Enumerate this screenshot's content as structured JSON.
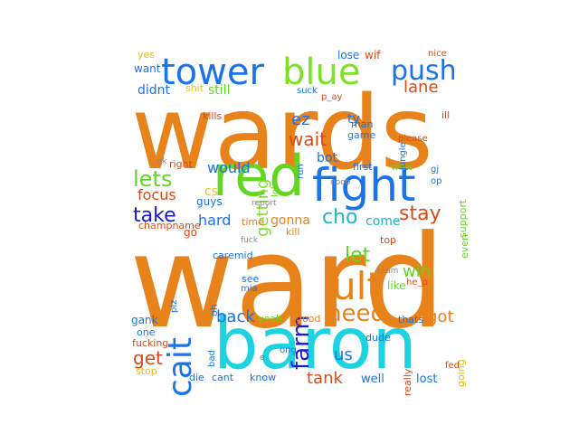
{
  "colors": {
    "orange": "#e8821a",
    "green": "#63d61f",
    "blue": "#1a73e8",
    "cyan": "#1ed3e0",
    "darkblue": "#1a1ad6",
    "red": "#d94a1a",
    "lime": "#7fe02a",
    "teal": "#1ab8c8",
    "gray": "#8a8a8a",
    "yellow": "#e0c21a"
  },
  "words": [
    {
      "t": "wards",
      "c": "orange",
      "r": 0
    },
    {
      "t": "ward",
      "c": "orange",
      "r": 0
    },
    {
      "t": "baron",
      "c": "cyan",
      "r": 0
    },
    {
      "t": "red",
      "c": "green",
      "r": 0
    },
    {
      "t": "fight",
      "c": "blue",
      "r": 0
    },
    {
      "t": "tower",
      "c": "blue",
      "r": 0
    },
    {
      "t": "blue",
      "c": "lime",
      "r": 0
    },
    {
      "t": "push",
      "c": "blue",
      "r": 0
    },
    {
      "t": "ult",
      "c": "orange",
      "r": 0
    },
    {
      "t": "cait",
      "c": "blue",
      "r": -90
    },
    {
      "t": "farm",
      "c": "darkblue",
      "r": -90
    },
    {
      "t": "need",
      "c": "orange",
      "r": 0
    },
    {
      "t": "lets",
      "c": "green",
      "r": 0
    },
    {
      "t": "take",
      "c": "darkblue",
      "r": 0
    },
    {
      "t": "cho",
      "c": "teal",
      "r": 0
    },
    {
      "t": "let",
      "c": "green",
      "r": 0
    },
    {
      "t": "stay",
      "c": "red",
      "r": 0
    },
    {
      "t": "lane",
      "c": "red",
      "r": 0
    },
    {
      "t": "wait",
      "c": "red",
      "r": 0
    },
    {
      "t": "ez",
      "c": "blue",
      "r": 0
    },
    {
      "t": "getting",
      "c": "lime",
      "r": -90
    },
    {
      "t": "back",
      "c": "blue",
      "r": 0
    },
    {
      "t": "got",
      "c": "orange",
      "r": 0
    },
    {
      "t": "win",
      "c": "green",
      "r": 0
    },
    {
      "t": "hard",
      "c": "blue",
      "r": 0
    },
    {
      "t": "would",
      "c": "blue",
      "r": 0
    },
    {
      "t": "focus",
      "c": "red",
      "r": 0
    },
    {
      "t": "gonna",
      "c": "orange",
      "r": 0
    },
    {
      "t": "come",
      "c": "teal",
      "r": 0
    },
    {
      "t": "bot",
      "c": "blue",
      "r": 0
    },
    {
      "t": "us",
      "c": "blue",
      "r": 0
    },
    {
      "t": "tank",
      "c": "red",
      "r": 0
    },
    {
      "t": "get",
      "c": "red",
      "r": 0
    },
    {
      "t": "cs",
      "c": "yellow",
      "r": 0
    },
    {
      "t": "guys",
      "c": "blue",
      "r": 0
    },
    {
      "t": "ty",
      "c": "blue",
      "r": 0
    },
    {
      "t": "didnt",
      "c": "blue",
      "r": 0
    },
    {
      "t": "still",
      "c": "green",
      "r": 0
    },
    {
      "t": "want",
      "c": "blue",
      "r": 0
    },
    {
      "t": "yes",
      "c": "yellow",
      "r": 0
    },
    {
      "t": "shit",
      "c": "yellow",
      "r": 0
    },
    {
      "t": "kills",
      "c": "red",
      "r": 0
    },
    {
      "t": "right",
      "c": "red",
      "r": 0
    },
    {
      "t": "ok",
      "c": "gray",
      "r": 0
    },
    {
      "t": "go",
      "c": "red",
      "r": 0
    },
    {
      "t": "time",
      "c": "orange",
      "r": 0
    },
    {
      "t": "kill",
      "c": "orange",
      "r": 0
    },
    {
      "t": "champname",
      "c": "red",
      "r": 0
    },
    {
      "t": "caremid",
      "c": "blue",
      "r": 0
    },
    {
      "t": "see",
      "c": "blue",
      "r": 0
    },
    {
      "t": "mia",
      "c": "blue",
      "r": 0
    },
    {
      "t": "oh",
      "c": "blue",
      "r": -90
    },
    {
      "t": "plz",
      "c": "blue",
      "r": -90
    },
    {
      "t": "gank",
      "c": "blue",
      "r": 0
    },
    {
      "t": "yeah",
      "c": "green",
      "r": 0
    },
    {
      "t": "good",
      "c": "orange",
      "r": 0
    },
    {
      "t": "one",
      "c": "blue",
      "r": 0
    },
    {
      "t": "fucking",
      "c": "red",
      "r": 0
    },
    {
      "t": "bad",
      "c": "blue",
      "r": -90
    },
    {
      "t": "stop",
      "c": "yellow",
      "r": 0
    },
    {
      "t": "die",
      "c": "blue",
      "r": 0
    },
    {
      "t": "cant",
      "c": "blue",
      "r": 0
    },
    {
      "t": "know",
      "c": "blue",
      "r": 0
    },
    {
      "t": "well",
      "c": "blue",
      "r": 0
    },
    {
      "t": "lost",
      "c": "blue",
      "r": 0
    },
    {
      "t": "dude",
      "c": "blue",
      "r": 0
    },
    {
      "t": "really",
      "c": "red",
      "r": -90
    },
    {
      "t": "thats",
      "c": "blue",
      "r": 0
    },
    {
      "t": "going",
      "c": "yellow",
      "r": -90
    },
    {
      "t": "fed",
      "c": "red",
      "r": 0
    },
    {
      "t": "like",
      "c": "green",
      "r": 0
    },
    {
      "t": "top",
      "c": "red",
      "r": 0
    },
    {
      "t": "team",
      "c": "gray",
      "r": 0
    },
    {
      "t": "he_p",
      "c": "red",
      "r": 0
    },
    {
      "t": "even",
      "c": "green",
      "r": -90
    },
    {
      "t": "support",
      "c": "green",
      "r": -90
    },
    {
      "t": "first",
      "c": "blue",
      "r": 0
    },
    {
      "t": "wow",
      "c": "green",
      "r": 0
    },
    {
      "t": "run",
      "c": "blue",
      "r": -90
    },
    {
      "t": "gj",
      "c": "blue",
      "r": 0
    },
    {
      "t": "op",
      "c": "blue",
      "r": 0
    },
    {
      "t": "lol",
      "c": "green",
      "r": -90
    },
    {
      "t": "man",
      "c": "blue",
      "r": 0
    },
    {
      "t": "game",
      "c": "blue",
      "r": 0
    },
    {
      "t": "jungle",
      "c": "blue",
      "r": -90
    },
    {
      "t": "please",
      "c": "red",
      "r": 0
    },
    {
      "t": "ill",
      "c": "red",
      "r": 0
    },
    {
      "t": "nice",
      "c": "red",
      "r": 0
    },
    {
      "t": "lose",
      "c": "blue",
      "r": 0
    },
    {
      "t": "wif",
      "c": "red",
      "r": 0
    },
    {
      "t": "suck",
      "c": "blue",
      "r": 0
    },
    {
      "t": "p_ay",
      "c": "red",
      "r": 0
    },
    {
      "t": "report",
      "c": "gray",
      "r": 0
    },
    {
      "t": "noob",
      "c": "gray",
      "r": 0
    },
    {
      "t": "fuck",
      "c": "gray",
      "r": 0
    },
    {
      "t": "ong",
      "c": "blue",
      "r": 0
    },
    {
      "t": "e",
      "c": "red",
      "r": 0
    }
  ]
}
